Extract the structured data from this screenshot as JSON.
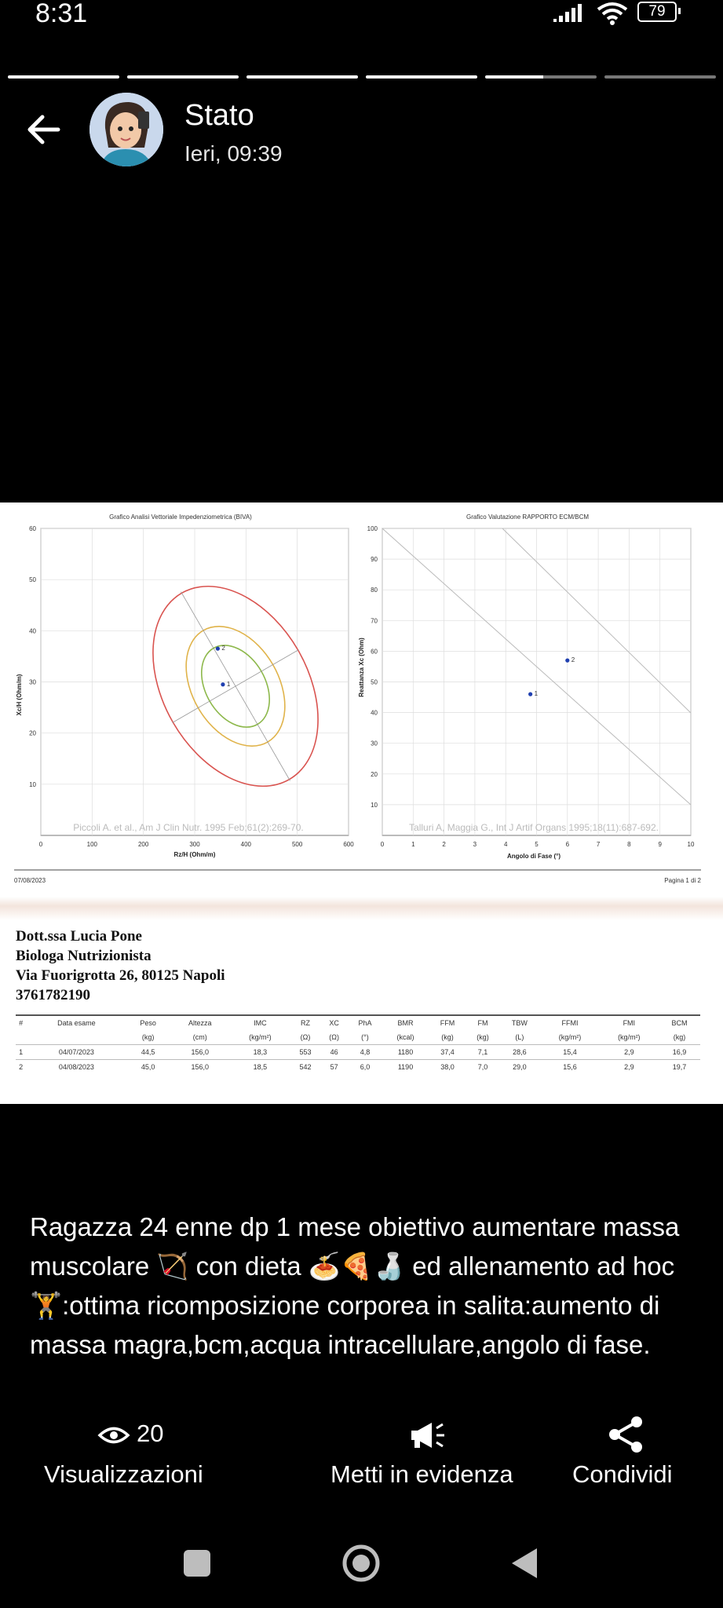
{
  "status_bar": {
    "time": "8:31",
    "battery": "79"
  },
  "header": {
    "title": "Stato",
    "subtitle": "Ieri, 09:39"
  },
  "document": {
    "biva_chart": {
      "type": "scatter",
      "title": "Grafico Analisi Vettoriale Impedenziometrica (BIVA)",
      "xlabel": "Rz/H (Ohm/m)",
      "ylabel": "Xc/H (Ohm/m)",
      "xlim": [
        0,
        600
      ],
      "ylim": [
        0,
        60
      ],
      "x_ticks": [
        "0",
        "100",
        "200",
        "300",
        "400",
        "500",
        "600"
      ],
      "y_ticks": [
        "10",
        "20",
        "30",
        "40",
        "50",
        "60"
      ],
      "points": [
        {
          "label": "1",
          "x": 355,
          "y": 29.5
        },
        {
          "label": "2",
          "x": 345,
          "y": 36.5
        }
      ],
      "reference": "Piccoli A. et al., Am J Clin Nutr. 1995 Feb;61(2):269-70."
    },
    "ecm_chart": {
      "type": "scatter",
      "title": "Grafico Valutazione RAPPORTO ECM/BCM",
      "xlabel": "Angolo di Fase (°)",
      "ylabel": "Reattanza Xc (Ohm)",
      "xlim": [
        0,
        10
      ],
      "ylim": [
        0,
        100
      ],
      "x_ticks": [
        "0",
        "1",
        "2",
        "3",
        "4",
        "5",
        "6",
        "7",
        "8",
        "9",
        "10"
      ],
      "y_ticks": [
        "10",
        "20",
        "30",
        "40",
        "50",
        "60",
        "70",
        "80",
        "90",
        "100"
      ],
      "points": [
        {
          "label": "1",
          "x": 4.8,
          "y": 46
        },
        {
          "label": "2",
          "x": 6.0,
          "y": 57
        }
      ],
      "reference": "Talluri A, Maggia G., Int J Artif Organs 1995;18(11):687-692."
    },
    "footer_date": "07/08/2023",
    "footer_page": "Pagina 1 di 2",
    "doctor": {
      "name": "Dott.ssa Lucia Pone",
      "role": "Biologa Nutrizionista",
      "address": "Via Fuorigrotta 26, 80125 Napoli",
      "phone": "3761782190"
    },
    "table": {
      "headers": [
        "#",
        "Data esame",
        "Peso",
        "Altezza",
        "IMC",
        "RZ",
        "XC",
        "PhA",
        "BMR",
        "FFM",
        "FM",
        "TBW",
        "FFMI",
        "FMI",
        "BCM"
      ],
      "units": [
        "",
        "",
        "(kg)",
        "(cm)",
        "(kg/m²)",
        "(Ω)",
        "(Ω)",
        "(°)",
        "(kcal)",
        "(kg)",
        "(kg)",
        "(L)",
        "(kg/m²)",
        "(kg/m²)",
        "(kg)"
      ],
      "rows": [
        [
          "1",
          "04/07/2023",
          "44,5",
          "156,0",
          "18,3",
          "553",
          "46",
          "4,8",
          "1180",
          "37,4",
          "7,1",
          "28,6",
          "15,4",
          "2,9",
          "16,9"
        ],
        [
          "2",
          "04/08/2023",
          "45,0",
          "156,0",
          "18,5",
          "542",
          "57",
          "6,0",
          "1190",
          "38,0",
          "7,0",
          "29,0",
          "15,6",
          "2,9",
          "19,7"
        ]
      ]
    }
  },
  "caption": {
    "part1": "Ragazza 24 enne dp 1 mese obiettivo aumentare massa muscolare",
    "part2": " con dieta ",
    "part3": "ed allenamento ad hoc",
    "part4": ":ottima ricomposizione corporea in salita:aumento di massa magra,bcm,acqua intracellulare,angolo di fase."
  },
  "actions": {
    "views_count": "20",
    "views_label": "Visualizzazioni",
    "highlight_label": "Metti in evidenza",
    "share_label": "Condividi"
  },
  "colors": {
    "background": "#000000",
    "ellipse_outer": "#d9534f",
    "ellipse_mid": "#e0b34a",
    "ellipse_inner": "#8db84b",
    "point": "#1f3fb0"
  },
  "chart_data": [
    {
      "type": "scatter",
      "title": "Grafico Analisi Vettoriale Impedenziometrica (BIVA)",
      "xlabel": "Rz/H (Ohm/m)",
      "ylabel": "Xc/H (Ohm/m)",
      "xlim": [
        0,
        600
      ],
      "ylim": [
        0,
        60
      ],
      "series": [
        {
          "values": [
            {
              "x": 355,
              "y": 29.5,
              "label": "1"
            },
            {
              "x": 345,
              "y": 36.5,
              "label": "2"
            }
          ]
        }
      ]
    },
    {
      "type": "scatter",
      "title": "Grafico Valutazione RAPPORTO ECM/BCM",
      "xlabel": "Angolo di Fase (°)",
      "ylabel": "Reattanza Xc (Ohm)",
      "xlim": [
        0,
        10
      ],
      "ylim": [
        0,
        100
      ],
      "series": [
        {
          "values": [
            {
              "x": 4.8,
              "y": 46,
              "label": "1"
            },
            {
              "x": 6.0,
              "y": 57,
              "label": "2"
            }
          ]
        }
      ]
    }
  ]
}
